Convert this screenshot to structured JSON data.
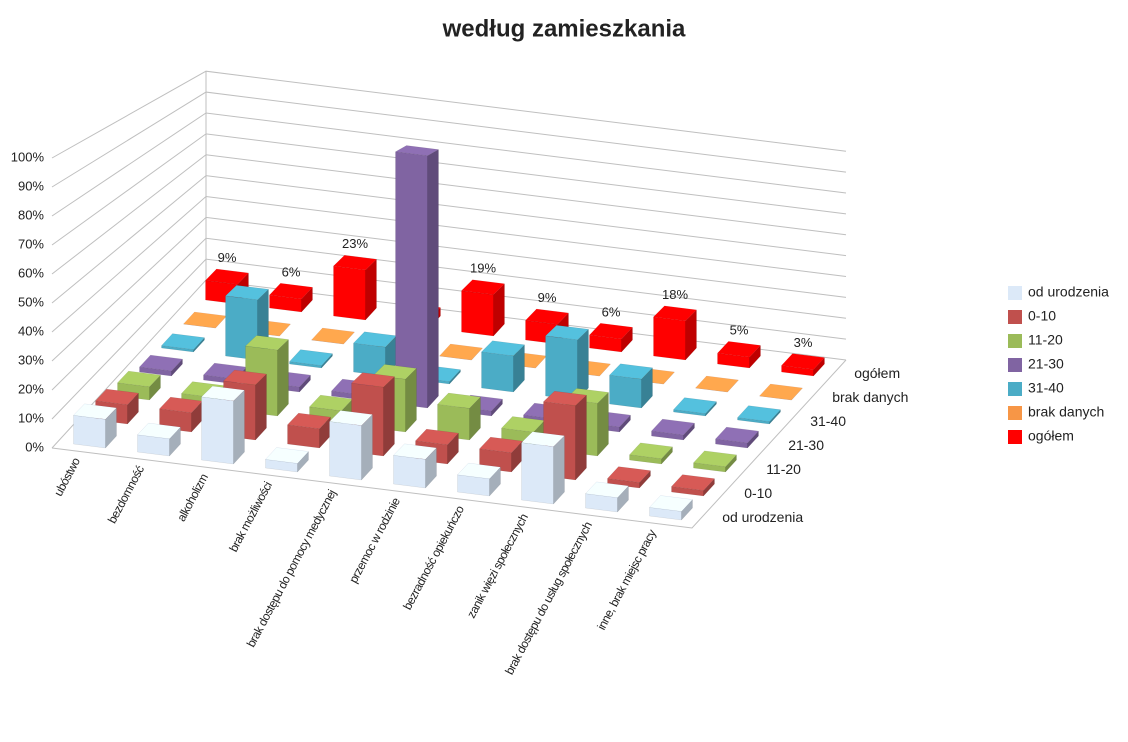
{
  "chart_data": {
    "type": "bar3d",
    "title": "według zamieszkania",
    "categories": [
      "ubóstwo",
      "bezdomność",
      "alkoholizm",
      "brak możliwości",
      "brak dostępu do pomocy medycznej",
      "przemoc w rodzinie",
      "bezradność opiekuńczo",
      "zanik więzi społecznych",
      "brak dostępu do usług społecznych",
      "inne, brak miejsc pracy"
    ],
    "series": [
      {
        "name": "od urodzenia",
        "color": "#dce9f8",
        "values": [
          10,
          6,
          22,
          3,
          19,
          10,
          6,
          20,
          5,
          3
        ]
      },
      {
        "name": "0-10",
        "color": "#c0504d",
        "values": [
          7,
          7,
          20,
          7,
          25,
          7,
          7,
          27,
          2,
          2
        ]
      },
      {
        "name": "11-20",
        "color": "#9bbb59",
        "values": [
          5,
          4,
          25,
          5,
          20,
          12,
          6,
          20,
          2,
          2
        ]
      },
      {
        "name": "21-30",
        "color": "#8064a2",
        "values": [
          2,
          2,
          2,
          2,
          100,
          2,
          2,
          2,
          2,
          2
        ]
      },
      {
        "name": "31-40",
        "color": "#4bacc6",
        "values": [
          1,
          25,
          1,
          12,
          1,
          15,
          25,
          12,
          1,
          1
        ]
      },
      {
        "name": "brak danych",
        "color": "#f79646",
        "values": [
          0,
          0,
          0,
          0,
          0,
          0,
          0,
          0,
          0,
          0
        ]
      },
      {
        "name": "ogółem",
        "color": "#ff0000",
        "values": [
          9,
          6,
          23,
          4,
          19,
          9,
          6,
          18,
          5,
          3
        ],
        "value_labels": [
          "9%",
          "6%",
          "23%",
          "4%",
          "19%",
          "9%",
          "6%",
          "18%",
          "5%",
          "3%"
        ]
      }
    ],
    "ylim": [
      0,
      100
    ],
    "yticks": [
      {
        "value": 0,
        "label": "0%"
      },
      {
        "value": 10,
        "label": "10%"
      },
      {
        "value": 20,
        "label": "20%"
      },
      {
        "value": 30,
        "label": "30%"
      },
      {
        "value": 40,
        "label": "40%"
      },
      {
        "value": 50,
        "label": "50%"
      },
      {
        "value": 60,
        "label": "60%"
      },
      {
        "value": 70,
        "label": "70%"
      },
      {
        "value": 80,
        "label": "80%"
      },
      {
        "value": 90,
        "label": "90%"
      },
      {
        "value": 100,
        "label": "100%"
      }
    ],
    "grid": true,
    "legend": "right"
  }
}
